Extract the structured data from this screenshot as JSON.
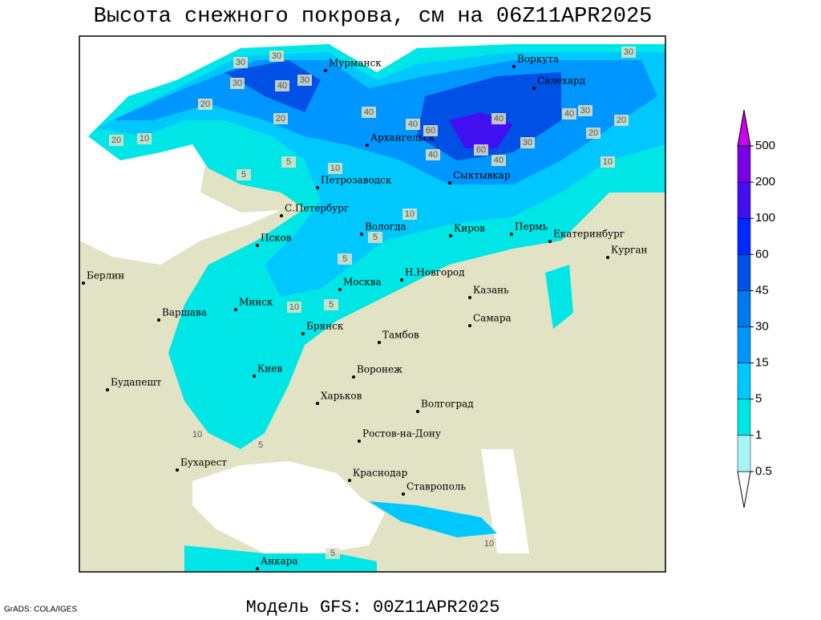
{
  "title": "Высота снежного покрова, см на 06Z11APR2025",
  "footer": "Модель GFS: 00Z11APR2025",
  "credit": "GrADS: COLA/IGES",
  "colorbar": {
    "levels": [
      0.5,
      1,
      5,
      15,
      30,
      45,
      60,
      100,
      200,
      500
    ],
    "colors": [
      "#ffffff",
      "#a8f4f4",
      "#00e6e6",
      "#00c8ff",
      "#0096ff",
      "#0078f0",
      "#0050e6",
      "#0028ff",
      "#4010f0",
      "#7800e6",
      "#c800f0"
    ]
  },
  "cities": [
    "Мурманск",
    "Воркута",
    "Салехард",
    "Архангельск",
    "Петрозаводск",
    "Сыктывкар",
    "С.Петербург",
    "Вологда",
    "Киров",
    "Пермь",
    "Екатеринбург",
    "Курган",
    "Псков",
    "Берлин",
    "Н.Новгород",
    "Москва",
    "Казань",
    "Минск",
    "Варшава",
    "Брянск",
    "Самара",
    "Тамбов",
    "Киев",
    "Воронеж",
    "Будапешт",
    "Харьков",
    "Волгоград",
    "Ростов-на-Дону",
    "Бухарест",
    "Краснодар",
    "Ставрополь",
    "Анкара"
  ],
  "contour_labels": [
    30,
    30,
    30,
    40,
    30,
    30,
    20,
    40,
    20,
    20,
    40,
    60,
    40,
    60,
    40,
    30,
    40,
    30,
    20,
    40,
    20,
    10,
    10,
    5,
    5,
    10,
    5,
    5,
    10,
    5,
    10,
    5,
    10,
    5,
    10
  ]
}
